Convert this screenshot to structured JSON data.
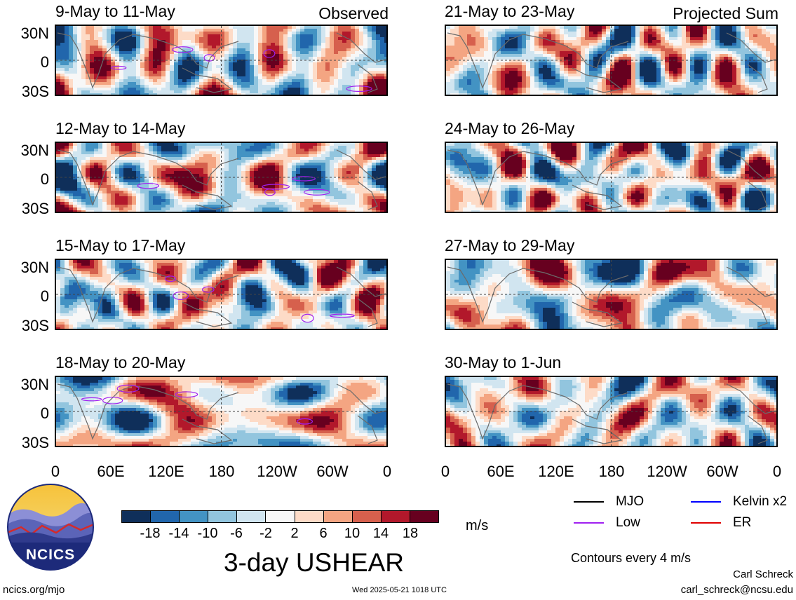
{
  "panels": [
    {
      "title": "9-May to 11-May",
      "tag": "Observed"
    },
    {
      "title": "12-May to 14-May",
      "tag": ""
    },
    {
      "title": "15-May to 17-May",
      "tag": ""
    },
    {
      "title": "18-May to 20-May",
      "tag": ""
    },
    {
      "title": "21-May to 23-May",
      "tag": "Projected Sum"
    },
    {
      "title": "24-May to 26-May",
      "tag": ""
    },
    {
      "title": "27-May to 29-May",
      "tag": ""
    },
    {
      "title": "30-May to 1-Jun",
      "tag": ""
    }
  ],
  "lat_labels": [
    "30N",
    "0",
    "30S"
  ],
  "lon_labels": [
    "0",
    "60E",
    "120E",
    "180",
    "120W",
    "60W",
    "0"
  ],
  "colorbar": {
    "ticks": [
      "-18",
      "-14",
      "-10",
      "-6",
      "-2",
      "2",
      "6",
      "10",
      "14",
      "18"
    ],
    "colors": [
      "#0f2f5a",
      "#2166ac",
      "#4393c3",
      "#92c5de",
      "#d1e5f0",
      "#f7f7f7",
      "#fddbc7",
      "#f4a582",
      "#d6604d",
      "#b2182b",
      "#67001f"
    ],
    "unit": "m/s"
  },
  "title": "3-day USHEAR",
  "legend": [
    {
      "label": "MJO",
      "color": "#000000"
    },
    {
      "label": "Kelvin x2",
      "color": "#0000ff"
    },
    {
      "label": "Low",
      "color": "#a020f0"
    },
    {
      "label": "ER",
      "color": "#e00000"
    }
  ],
  "contour_note": "Contours every 4 m/s",
  "logo_text": "NCICS",
  "site": "ncics.org/mjo",
  "timestamp": "Wed 2025-05-21 1018 UTC",
  "author": "Carl Schreck",
  "email": "carl_schreck@ncsu.edu"
}
